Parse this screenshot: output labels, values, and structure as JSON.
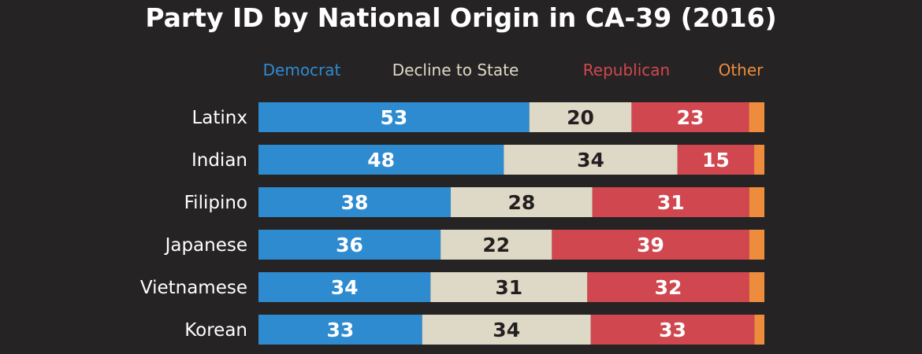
{
  "chart_data": {
    "type": "bar",
    "orientation": "horizontal",
    "stacked": true,
    "title": "Party ID by National Origin in CA-39 (2016)",
    "categories": [
      "Latinx",
      "Indian",
      "Filipino",
      "Japanese",
      "Vietnamese",
      "Korean"
    ],
    "series": [
      {
        "name": "Democrat",
        "color": "#2e8bcf",
        "label_color": "#ffffff",
        "values": [
          53,
          48,
          38,
          36,
          34,
          33
        ]
      },
      {
        "name": "Decline to State",
        "color": "#ded9c6",
        "label_color": "#231f20",
        "values": [
          20,
          34,
          28,
          22,
          31,
          34
        ]
      },
      {
        "name": "Republican",
        "color": "#d1474f",
        "label_color": "#ffffff",
        "values": [
          23,
          15,
          31,
          39,
          32,
          33
        ]
      },
      {
        "name": "Other",
        "color": "#ee8c3d",
        "label_color": "#ffffff",
        "values": [
          3,
          2,
          3,
          3,
          3,
          2
        ]
      }
    ],
    "xlim": [
      0,
      100
    ],
    "legend_position": "top",
    "value_labels_shown_for": [
      "Democrat",
      "Decline to State",
      "Republican"
    ],
    "background": "#252324",
    "text_color": "#ffffff"
  }
}
